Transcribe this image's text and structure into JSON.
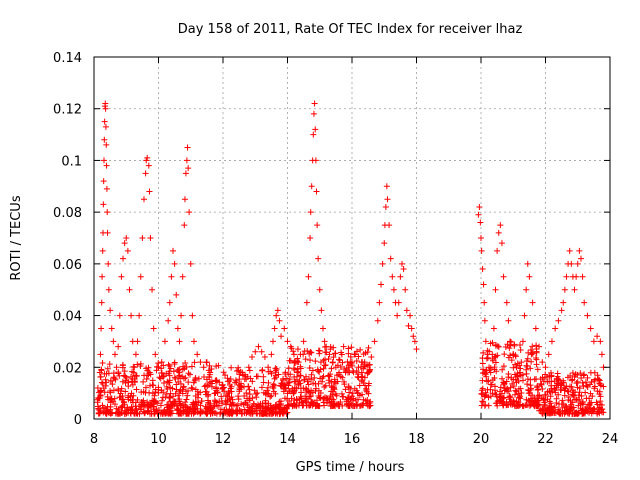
{
  "chart_data": {
    "type": "scatter",
    "title": "Day 158 of 2011, Rate Of TEC Index for receiver lhaz",
    "xlabel": "GPS time / hours",
    "ylabel": "ROTI / TECUs",
    "xlim": [
      8,
      24
    ],
    "ylim": [
      0,
      0.14
    ],
    "x_ticks": [
      8,
      10,
      12,
      14,
      16,
      18,
      20,
      22,
      24
    ],
    "y_ticks": [
      0,
      0.02,
      0.04,
      0.06,
      0.08,
      0.1,
      0.12,
      0.14
    ],
    "x_tick_labels": [
      "8",
      "10",
      "12",
      "14",
      "16",
      "18",
      "20",
      "22",
      "24"
    ],
    "y_tick_labels": [
      "0",
      "0.02",
      "0.04",
      "0.06",
      "0.08",
      "0.1",
      "0.12",
      "0.14"
    ],
    "grid": true,
    "marker": "+",
    "color": "#ff0000",
    "series": [
      {
        "name": "ROTI",
        "points": [
          [
            8.12,
            0.012
          ],
          [
            8.15,
            0.008
          ],
          [
            8.18,
            0.018
          ],
          [
            8.2,
            0.025
          ],
          [
            8.22,
            0.035
          ],
          [
            8.24,
            0.045
          ],
          [
            8.25,
            0.055
          ],
          [
            8.27,
            0.065
          ],
          [
            8.28,
            0.072
          ],
          [
            8.29,
            0.083
          ],
          [
            8.3,
            0.092
          ],
          [
            8.31,
            0.1
          ],
          [
            8.32,
            0.108
          ],
          [
            8.33,
            0.115
          ],
          [
            8.34,
            0.121
          ],
          [
            8.35,
            0.122
          ],
          [
            8.36,
            0.12
          ],
          [
            8.37,
            0.113
          ],
          [
            8.38,
            0.106
          ],
          [
            8.39,
            0.098
          ],
          [
            8.4,
            0.089
          ],
          [
            8.41,
            0.08
          ],
          [
            8.42,
            0.072
          ],
          [
            8.44,
            0.06
          ],
          [
            8.46,
            0.05
          ],
          [
            8.5,
            0.042
          ],
          [
            8.55,
            0.035
          ],
          [
            8.6,
            0.03
          ],
          [
            8.65,
            0.025
          ],
          [
            8.7,
            0.02
          ],
          [
            8.75,
            0.028
          ],
          [
            8.8,
            0.04
          ],
          [
            8.85,
            0.055
          ],
          [
            8.9,
            0.062
          ],
          [
            8.95,
            0.068
          ],
          [
            9.0,
            0.07
          ],
          [
            9.05,
            0.065
          ],
          [
            9.1,
            0.05
          ],
          [
            9.15,
            0.04
          ],
          [
            9.2,
            0.03
          ],
          [
            9.25,
            0.02
          ],
          [
            9.3,
            0.025
          ],
          [
            9.35,
            0.03
          ],
          [
            9.4,
            0.04
          ],
          [
            9.45,
            0.055
          ],
          [
            9.5,
            0.07
          ],
          [
            9.55,
            0.085
          ],
          [
            9.6,
            0.095
          ],
          [
            9.62,
            0.1
          ],
          [
            9.65,
            0.101
          ],
          [
            9.7,
            0.098
          ],
          [
            9.72,
            0.088
          ],
          [
            9.75,
            0.07
          ],
          [
            9.8,
            0.05
          ],
          [
            9.85,
            0.035
          ],
          [
            9.9,
            0.025
          ],
          [
            10.0,
            0.02
          ],
          [
            10.1,
            0.022
          ],
          [
            10.2,
            0.03
          ],
          [
            10.3,
            0.038
          ],
          [
            10.35,
            0.045
          ],
          [
            10.4,
            0.055
          ],
          [
            10.45,
            0.065
          ],
          [
            10.5,
            0.06
          ],
          [
            10.55,
            0.048
          ],
          [
            10.6,
            0.035
          ],
          [
            10.65,
            0.03
          ],
          [
            10.7,
            0.04
          ],
          [
            10.75,
            0.055
          ],
          [
            10.8,
            0.075
          ],
          [
            10.82,
            0.085
          ],
          [
            10.85,
            0.095
          ],
          [
            10.88,
            0.1
          ],
          [
            10.9,
            0.105
          ],
          [
            10.92,
            0.097
          ],
          [
            10.95,
            0.08
          ],
          [
            11.0,
            0.06
          ],
          [
            11.05,
            0.04
          ],
          [
            11.1,
            0.03
          ],
          [
            11.2,
            0.025
          ],
          [
            11.3,
            0.022
          ],
          [
            11.4,
            0.02
          ],
          [
            11.5,
            0.022
          ],
          [
            11.6,
            0.018
          ],
          [
            11.8,
            0.015
          ],
          [
            12.0,
            0.012
          ],
          [
            12.2,
            0.01
          ],
          [
            12.4,
            0.015
          ],
          [
            12.6,
            0.018
          ],
          [
            12.8,
            0.02
          ],
          [
            12.9,
            0.024
          ],
          [
            13.0,
            0.026
          ],
          [
            13.1,
            0.028
          ],
          [
            13.2,
            0.026
          ],
          [
            13.3,
            0.024
          ],
          [
            13.4,
            0.02
          ],
          [
            13.5,
            0.025
          ],
          [
            13.55,
            0.03
          ],
          [
            13.6,
            0.035
          ],
          [
            13.65,
            0.04
          ],
          [
            13.7,
            0.042
          ],
          [
            13.75,
            0.038
          ],
          [
            13.8,
            0.032
          ],
          [
            13.9,
            0.035
          ],
          [
            14.0,
            0.03
          ],
          [
            14.1,
            0.028
          ],
          [
            14.2,
            0.025
          ],
          [
            14.3,
            0.022
          ],
          [
            14.4,
            0.025
          ],
          [
            14.5,
            0.03
          ],
          [
            14.6,
            0.045
          ],
          [
            14.65,
            0.055
          ],
          [
            14.7,
            0.07
          ],
          [
            14.72,
            0.08
          ],
          [
            14.75,
            0.09
          ],
          [
            14.78,
            0.1
          ],
          [
            14.8,
            0.11
          ],
          [
            14.82,
            0.118
          ],
          [
            14.84,
            0.122
          ],
          [
            14.86,
            0.112
          ],
          [
            14.88,
            0.1
          ],
          [
            14.9,
            0.088
          ],
          [
            14.92,
            0.075
          ],
          [
            14.95,
            0.062
          ],
          [
            15.0,
            0.05
          ],
          [
            15.05,
            0.042
          ],
          [
            15.1,
            0.035
          ],
          [
            15.15,
            0.03
          ],
          [
            15.2,
            0.028
          ],
          [
            15.3,
            0.025
          ],
          [
            15.4,
            0.022
          ],
          [
            15.5,
            0.02
          ],
          [
            15.6,
            0.018
          ],
          [
            15.7,
            0.016
          ],
          [
            15.8,
            0.018
          ],
          [
            15.9,
            0.02
          ],
          [
            16.0,
            0.022
          ],
          [
            16.1,
            0.025
          ],
          [
            16.2,
            0.02
          ],
          [
            16.3,
            0.018
          ],
          [
            16.4,
            0.016
          ],
          [
            16.5,
            0.018
          ],
          [
            16.6,
            0.024
          ],
          [
            16.7,
            0.03
          ],
          [
            16.8,
            0.038
          ],
          [
            16.85,
            0.045
          ],
          [
            16.9,
            0.052
          ],
          [
            16.95,
            0.06
          ],
          [
            17.0,
            0.068
          ],
          [
            17.02,
            0.075
          ],
          [
            17.05,
            0.082
          ],
          [
            17.08,
            0.09
          ],
          [
            17.1,
            0.085
          ],
          [
            17.15,
            0.075
          ],
          [
            17.2,
            0.062
          ],
          [
            17.25,
            0.055
          ],
          [
            17.3,
            0.05
          ],
          [
            17.35,
            0.045
          ],
          [
            17.4,
            0.04
          ],
          [
            17.45,
            0.045
          ],
          [
            17.5,
            0.055
          ],
          [
            17.55,
            0.06
          ],
          [
            17.6,
            0.058
          ],
          [
            17.65,
            0.05
          ],
          [
            17.7,
            0.042
          ],
          [
            17.75,
            0.036
          ],
          [
            17.8,
            0.04
          ],
          [
            17.85,
            0.035
          ],
          [
            17.9,
            0.032
          ],
          [
            17.95,
            0.03
          ],
          [
            18.0,
            0.027
          ],
          [
            19.92,
            0.079
          ],
          [
            19.95,
            0.082
          ],
          [
            19.98,
            0.076
          ],
          [
            20.0,
            0.07
          ],
          [
            20.02,
            0.065
          ],
          [
            20.05,
            0.058
          ],
          [
            20.08,
            0.052
          ],
          [
            20.1,
            0.045
          ],
          [
            20.12,
            0.038
          ],
          [
            20.15,
            0.03
          ],
          [
            20.2,
            0.025
          ],
          [
            20.25,
            0.02
          ],
          [
            20.3,
            0.018
          ],
          [
            20.35,
            0.025
          ],
          [
            20.4,
            0.035
          ],
          [
            20.45,
            0.05
          ],
          [
            20.5,
            0.065
          ],
          [
            20.55,
            0.072
          ],
          [
            20.6,
            0.075
          ],
          [
            20.65,
            0.068
          ],
          [
            20.7,
            0.055
          ],
          [
            20.8,
            0.045
          ],
          [
            20.85,
            0.038
          ],
          [
            20.9,
            0.03
          ],
          [
            21.0,
            0.025
          ],
          [
            21.1,
            0.02
          ],
          [
            21.2,
            0.018
          ],
          [
            21.25,
            0.022
          ],
          [
            21.3,
            0.03
          ],
          [
            21.35,
            0.04
          ],
          [
            21.4,
            0.05
          ],
          [
            21.45,
            0.06
          ],
          [
            21.5,
            0.055
          ],
          [
            21.6,
            0.045
          ],
          [
            21.7,
            0.035
          ],
          [
            21.8,
            0.028
          ],
          [
            21.9,
            0.022
          ],
          [
            22.0,
            0.02
          ],
          [
            22.1,
            0.025
          ],
          [
            22.2,
            0.03
          ],
          [
            22.3,
            0.035
          ],
          [
            22.4,
            0.038
          ],
          [
            22.5,
            0.042
          ],
          [
            22.55,
            0.045
          ],
          [
            22.6,
            0.05
          ],
          [
            22.65,
            0.055
          ],
          [
            22.7,
            0.06
          ],
          [
            22.75,
            0.065
          ],
          [
            22.8,
            0.06
          ],
          [
            22.85,
            0.055
          ],
          [
            22.9,
            0.05
          ],
          [
            22.95,
            0.055
          ],
          [
            23.0,
            0.06
          ],
          [
            23.05,
            0.065
          ],
          [
            23.1,
            0.062
          ],
          [
            23.15,
            0.055
          ],
          [
            23.2,
            0.045
          ],
          [
            23.3,
            0.04
          ],
          [
            23.4,
            0.035
          ],
          [
            23.5,
            0.03
          ],
          [
            23.6,
            0.032
          ],
          [
            23.7,
            0.03
          ],
          [
            23.75,
            0.025
          ],
          [
            23.8,
            0.02
          ]
        ],
        "dense_band": {
          "description": "dense cluster of points near the baseline",
          "segments": [
            {
              "x_from": 8.1,
              "x_to": 11.9,
              "y_from": 0.002,
              "y_to": 0.022
            },
            {
              "x_from": 11.9,
              "x_to": 14.0,
              "y_from": 0.002,
              "y_to": 0.02
            },
            {
              "x_from": 14.0,
              "x_to": 16.6,
              "y_from": 0.005,
              "y_to": 0.028
            },
            {
              "x_from": 20.0,
              "x_to": 21.8,
              "y_from": 0.005,
              "y_to": 0.03
            },
            {
              "x_from": 21.8,
              "x_to": 23.8,
              "y_from": 0.002,
              "y_to": 0.018
            }
          ]
        }
      }
    ]
  }
}
